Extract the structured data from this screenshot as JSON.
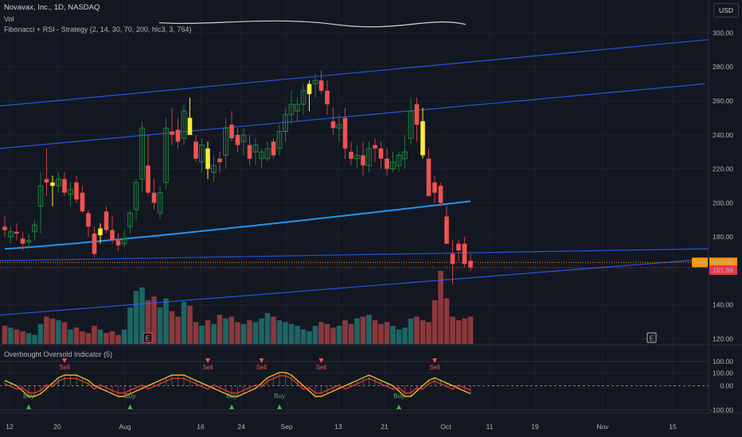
{
  "header": {
    "title": "Novavax, Inc., 1D, NASDAQ",
    "vol_label": "Vol",
    "strategy_label": "Fibonacci + RSI - Strategy (2, 14, 30, 70, 200, hlc3, 3, 764)",
    "currency": "USD"
  },
  "indicator": {
    "label": "Overbought Oversold Indicator (5)",
    "y_ticks": [
      "100.00",
      "0.00",
      "-100.00"
    ],
    "buy_label": "Buy",
    "sell_label": "Sell"
  },
  "price_axis": {
    "ticks": [
      "300.00",
      "280.00",
      "260.00",
      "240.00",
      "220.00",
      "200.00",
      "180.00",
      "140.00",
      "120.00",
      "100.00"
    ],
    "pre_tag": "Pre",
    "pre_price": "165.00",
    "last_price": "161.89"
  },
  "time_axis": {
    "ticks": [
      "12",
      "20",
      "Aug",
      "16",
      "24",
      "Sep",
      "13",
      "21",
      "Oct",
      "11",
      "19",
      "Nov",
      "15"
    ]
  },
  "markers": {
    "earnings": "E"
  },
  "colors": {
    "background": "#131722",
    "up": "#26a69a",
    "down": "#ef5350",
    "highlight": "#ffeb3b",
    "trendline": "#2962ff",
    "ma": "#2196f3",
    "pre_tag": "#ff9800",
    "last_price": "#f23645"
  },
  "chart_data": {
    "type": "candlestick",
    "series": [
      {
        "name": "Price",
        "ohlc_columns": [
          "open",
          "high",
          "low",
          "close"
        ],
        "points": [
          [
            186,
            192,
            180,
            184
          ],
          [
            180,
            186,
            176,
            183
          ],
          [
            183,
            188,
            178,
            182
          ],
          [
            179,
            183,
            172,
            176
          ],
          [
            177,
            182,
            174,
            178
          ],
          [
            183,
            190,
            178,
            187
          ],
          [
            198,
            218,
            182,
            210
          ],
          [
            214,
            232,
            204,
            212
          ],
          [
            212,
            216,
            198,
            210
          ],
          [
            210,
            218,
            206,
            214
          ],
          [
            214,
            218,
            204,
            206
          ],
          [
            205,
            212,
            198,
            208
          ],
          [
            212,
            216,
            200,
            202
          ],
          [
            206,
            210,
            194,
            195
          ],
          [
            194,
            196,
            180,
            186
          ],
          [
            182,
            186,
            168,
            170
          ],
          [
            181,
            188,
            176,
            185
          ],
          [
            195,
            198,
            182,
            184
          ],
          [
            184,
            192,
            176,
            178
          ],
          [
            178,
            182,
            172,
            175
          ],
          [
            176,
            184,
            174,
            179
          ],
          [
            186,
            196,
            182,
            194
          ],
          [
            196,
            214,
            190,
            212
          ],
          [
            214,
            248,
            206,
            244
          ],
          [
            222,
            240,
            204,
            206
          ],
          [
            206,
            214,
            196,
            200
          ],
          [
            194,
            210,
            190,
            206
          ],
          [
            212,
            250,
            208,
            244
          ],
          [
            242,
            256,
            234,
            240
          ],
          [
            243,
            250,
            232,
            236
          ],
          [
            238,
            258,
            234,
            254
          ],
          [
            250,
            262,
            244,
            240
          ],
          [
            236,
            240,
            224,
            226
          ],
          [
            224,
            238,
            218,
            234
          ],
          [
            232,
            236,
            214,
            220
          ],
          [
            218,
            228,
            212,
            222
          ],
          [
            226,
            230,
            218,
            224
          ],
          [
            228,
            250,
            220,
            244
          ],
          [
            246,
            254,
            236,
            238
          ],
          [
            240,
            244,
            230,
            234
          ],
          [
            236,
            244,
            228,
            240
          ],
          [
            234,
            240,
            222,
            226
          ],
          [
            230,
            238,
            222,
            234
          ],
          [
            226,
            232,
            220,
            230
          ],
          [
            226,
            236,
            224,
            232
          ],
          [
            236,
            238,
            226,
            228
          ],
          [
            232,
            246,
            228,
            242
          ],
          [
            242,
            256,
            236,
            252
          ],
          [
            252,
            266,
            246,
            258
          ],
          [
            254,
            262,
            248,
            258
          ],
          [
            258,
            270,
            252,
            266
          ],
          [
            264,
            272,
            254,
            270
          ],
          [
            270,
            276,
            262,
            272
          ],
          [
            272,
            278,
            264,
            266
          ],
          [
            266,
            272,
            252,
            258
          ],
          [
            248,
            256,
            240,
            244
          ],
          [
            244,
            252,
            236,
            246
          ],
          [
            250,
            256,
            226,
            232
          ],
          [
            230,
            236,
            222,
            226
          ],
          [
            226,
            234,
            220,
            228
          ],
          [
            228,
            236,
            216,
            222
          ],
          [
            222,
            236,
            218,
            232
          ],
          [
            234,
            238,
            224,
            232
          ],
          [
            232,
            236,
            220,
            226
          ],
          [
            226,
            232,
            216,
            220
          ],
          [
            220,
            230,
            218,
            224
          ],
          [
            222,
            230,
            218,
            228
          ],
          [
            226,
            240,
            220,
            230
          ],
          [
            238,
            262,
            234,
            254
          ],
          [
            258,
            262,
            236,
            246
          ],
          [
            248,
            256,
            226,
            228
          ],
          [
            226,
            232,
            204,
            204
          ],
          [
            212,
            216,
            200,
            206
          ],
          [
            210,
            212,
            198,
            200
          ],
          [
            192,
            198,
            176,
            176
          ],
          [
            170,
            178,
            152,
            164
          ],
          [
            176,
            178,
            166,
            172
          ],
          [
            176,
            180,
            162,
            164
          ],
          [
            166,
            170,
            160,
            162
          ]
        ]
      },
      {
        "name": "Vol",
        "values": [
          20,
          18,
          16,
          14,
          12,
          10,
          22,
          30,
          28,
          26,
          24,
          16,
          18,
          14,
          12,
          20,
          16,
          12,
          14,
          10,
          16,
          40,
          58,
          62,
          48,
          52,
          40,
          50,
          36,
          30,
          46,
          42,
          24,
          20,
          26,
          22,
          32,
          28,
          30,
          24,
          22,
          26,
          24,
          28,
          34,
          30,
          26,
          24,
          22,
          20,
          16,
          14,
          20,
          24,
          22,
          18,
          20,
          26,
          22,
          28,
          30,
          32,
          26,
          22,
          24,
          20,
          16,
          18,
          28,
          30,
          26,
          24,
          48,
          80,
          50,
          30,
          26,
          28,
          30
        ]
      },
      {
        "name": "Overbought Oversold Indicator (5)",
        "values": [
          40,
          20,
          0,
          -40,
          -80,
          -80,
          -60,
          -20,
          20,
          60,
          80,
          80,
          80,
          60,
          40,
          0,
          -20,
          -40,
          -60,
          -80,
          -80,
          -60,
          -40,
          -20,
          0,
          20,
          40,
          60,
          80,
          80,
          80,
          60,
          40,
          20,
          0,
          -20,
          -40,
          -60,
          -80,
          -80,
          -60,
          -40,
          -20,
          20,
          60,
          80,
          100,
          100,
          80,
          40,
          0,
          -40,
          -80,
          -80,
          -60,
          -40,
          -20,
          0,
          20,
          40,
          60,
          80,
          60,
          40,
          20,
          0,
          -40,
          -80,
          -80,
          -40,
          0,
          40,
          60,
          40,
          20,
          0,
          -20,
          -40,
          -60
        ]
      }
    ],
    "signals": {
      "buy": [
        4,
        21,
        38,
        46,
        66
      ],
      "sell": [
        10,
        34,
        43,
        53,
        72
      ]
    },
    "ylim_price": [
      95,
      310
    ],
    "ylim_indicator": [
      -100,
      100
    ],
    "xlabel": "",
    "ylabel": ""
  }
}
